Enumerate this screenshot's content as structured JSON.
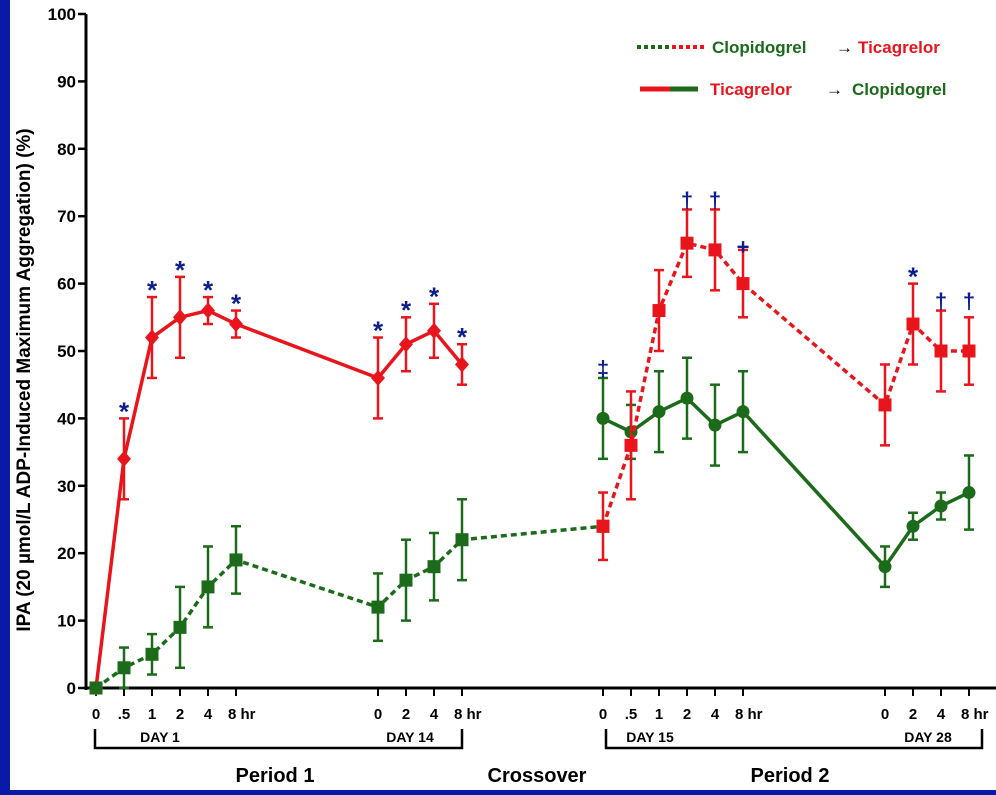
{
  "chart_data": {
    "type": "line",
    "ylabel": "IPA (20 µmol/L ADP-Induced Maximum Aggregation) (%)",
    "ylim": [
      0,
      100
    ],
    "yticks": [
      "0",
      "10",
      "20",
      "30",
      "40",
      "50",
      "60",
      "70",
      "80",
      "90",
      "100"
    ],
    "grid": false,
    "legend_position": "top-right",
    "legend": [
      {
        "first": "Clopidogrel",
        "arrow": "→",
        "second": "Ticagrelor",
        "first_color": "#1b6b1b",
        "second_color": "#e8161c",
        "style": "dashed"
      },
      {
        "first": "Ticagrelor",
        "arrow": "→",
        "second": "Clopidogrel",
        "first_color": "#e8161c",
        "second_color": "#1b6b1b",
        "style": "solid"
      }
    ],
    "x_tick_labels": [
      "0",
      ".5",
      "1",
      "2",
      "4",
      "8 hr",
      "0",
      "2",
      "4",
      "8 hr",
      "0",
      ".5",
      "1",
      "2",
      "4",
      "8 hr",
      "0",
      "2",
      "4",
      "8 hr"
    ],
    "day_labels": [
      "DAY 1",
      "DAY 14",
      "DAY 15",
      "DAY 28"
    ],
    "period_labels": [
      "Period 1",
      "Crossover",
      "Period 2"
    ],
    "series": [
      {
        "name": "Ticagrelor → Clopidogrel",
        "period1": {
          "marker": "diamond",
          "style": "solid",
          "color": "#e8161c",
          "points": [
            {
              "x": 0,
              "y": 0,
              "err": 0
            },
            {
              "x": 1,
              "y": 34,
              "err": 6
            },
            {
              "x": 2,
              "y": 52,
              "err": 6
            },
            {
              "x": 3,
              "y": 55,
              "err": 6
            },
            {
              "x": 4,
              "y": 56,
              "err": 2
            },
            {
              "x": 5,
              "y": 54,
              "err": 2
            },
            {
              "x": 6,
              "y": 46,
              "err": 6
            },
            {
              "x": 7,
              "y": 51,
              "err": 4
            },
            {
              "x": 8,
              "y": 53,
              "err": 4
            },
            {
              "x": 9,
              "y": 48,
              "err": 3
            }
          ]
        },
        "period2": {
          "marker": "circle",
          "style": "solid",
          "color": "#1b6b1b",
          "points": [
            {
              "x": 10,
              "y": 40,
              "err": 6
            },
            {
              "x": 11,
              "y": 38,
              "err": 4
            },
            {
              "x": 12,
              "y": 41,
              "err": 6
            },
            {
              "x": 13,
              "y": 43,
              "err": 6
            },
            {
              "x": 14,
              "y": 39,
              "err": 6
            },
            {
              "x": 15,
              "y": 41,
              "err": 6
            },
            {
              "x": 16,
              "y": 18,
              "err": 3
            },
            {
              "x": 17,
              "y": 24,
              "err": 2
            },
            {
              "x": 18,
              "y": 27,
              "err": 2
            },
            {
              "x": 19,
              "y": 29,
              "err": 5.5
            }
          ]
        }
      },
      {
        "name": "Clopidogrel → Ticagrelor",
        "period1": {
          "marker": "square",
          "style": "dashed",
          "color": "#1b6b1b",
          "points": [
            {
              "x": 0,
              "y": 0,
              "err": 0
            },
            {
              "x": 1,
              "y": 3,
              "err": 3
            },
            {
              "x": 2,
              "y": 5,
              "err": 3
            },
            {
              "x": 3,
              "y": 9,
              "err": 6
            },
            {
              "x": 4,
              "y": 15,
              "err": 6
            },
            {
              "x": 5,
              "y": 19,
              "err": 5
            },
            {
              "x": 6,
              "y": 12,
              "err": 5
            },
            {
              "x": 7,
              "y": 16,
              "err": 6
            },
            {
              "x": 8,
              "y": 18,
              "err": 5
            },
            {
              "x": 9,
              "y": 22,
              "err": 6
            },
            {
              "x": 10,
              "y": 24,
              "err": 0
            }
          ]
        },
        "period2": {
          "marker": "square",
          "style": "dashed",
          "color": "#e8161c",
          "points": [
            {
              "x": 10,
              "y": 24,
              "err": 5
            },
            {
              "x": 11,
              "y": 36,
              "err": 8
            },
            {
              "x": 12,
              "y": 56,
              "err": 6
            },
            {
              "x": 13,
              "y": 66,
              "err": 5
            },
            {
              "x": 14,
              "y": 65,
              "err": 6
            },
            {
              "x": 15,
              "y": 60,
              "err": 5
            },
            {
              "x": 16,
              "y": 42,
              "err": 6
            },
            {
              "x": 17,
              "y": 54,
              "err": 6
            },
            {
              "x": 18,
              "y": 50,
              "err": 6
            },
            {
              "x": 19,
              "y": 50,
              "err": 5
            }
          ]
        }
      }
    ],
    "annotations": [
      {
        "x": 1,
        "y": 41.5,
        "text": "*"
      },
      {
        "x": 2,
        "y": 59.5,
        "text": "*"
      },
      {
        "x": 3,
        "y": 62.5,
        "text": "*"
      },
      {
        "x": 4,
        "y": 59.5,
        "text": "*"
      },
      {
        "x": 5,
        "y": 57.5,
        "text": "*"
      },
      {
        "x": 6,
        "y": 53.5,
        "text": "*"
      },
      {
        "x": 7,
        "y": 56.5,
        "text": "*"
      },
      {
        "x": 8,
        "y": 58.5,
        "text": "*"
      },
      {
        "x": 9,
        "y": 52.5,
        "text": "*"
      },
      {
        "x": 10,
        "y": 47.5,
        "text": "‡"
      },
      {
        "x": 13,
        "y": 72.5,
        "text": "†"
      },
      {
        "x": 14,
        "y": 72.5,
        "text": "†"
      },
      {
        "x": 15,
        "y": 65.5,
        "text": "+"
      },
      {
        "x": 17,
        "y": 61.5,
        "text": "*"
      },
      {
        "x": 18,
        "y": 57.5,
        "text": "†"
      },
      {
        "x": 19,
        "y": 57.5,
        "text": "†"
      }
    ],
    "annotation_color": "#0d1e8c"
  }
}
